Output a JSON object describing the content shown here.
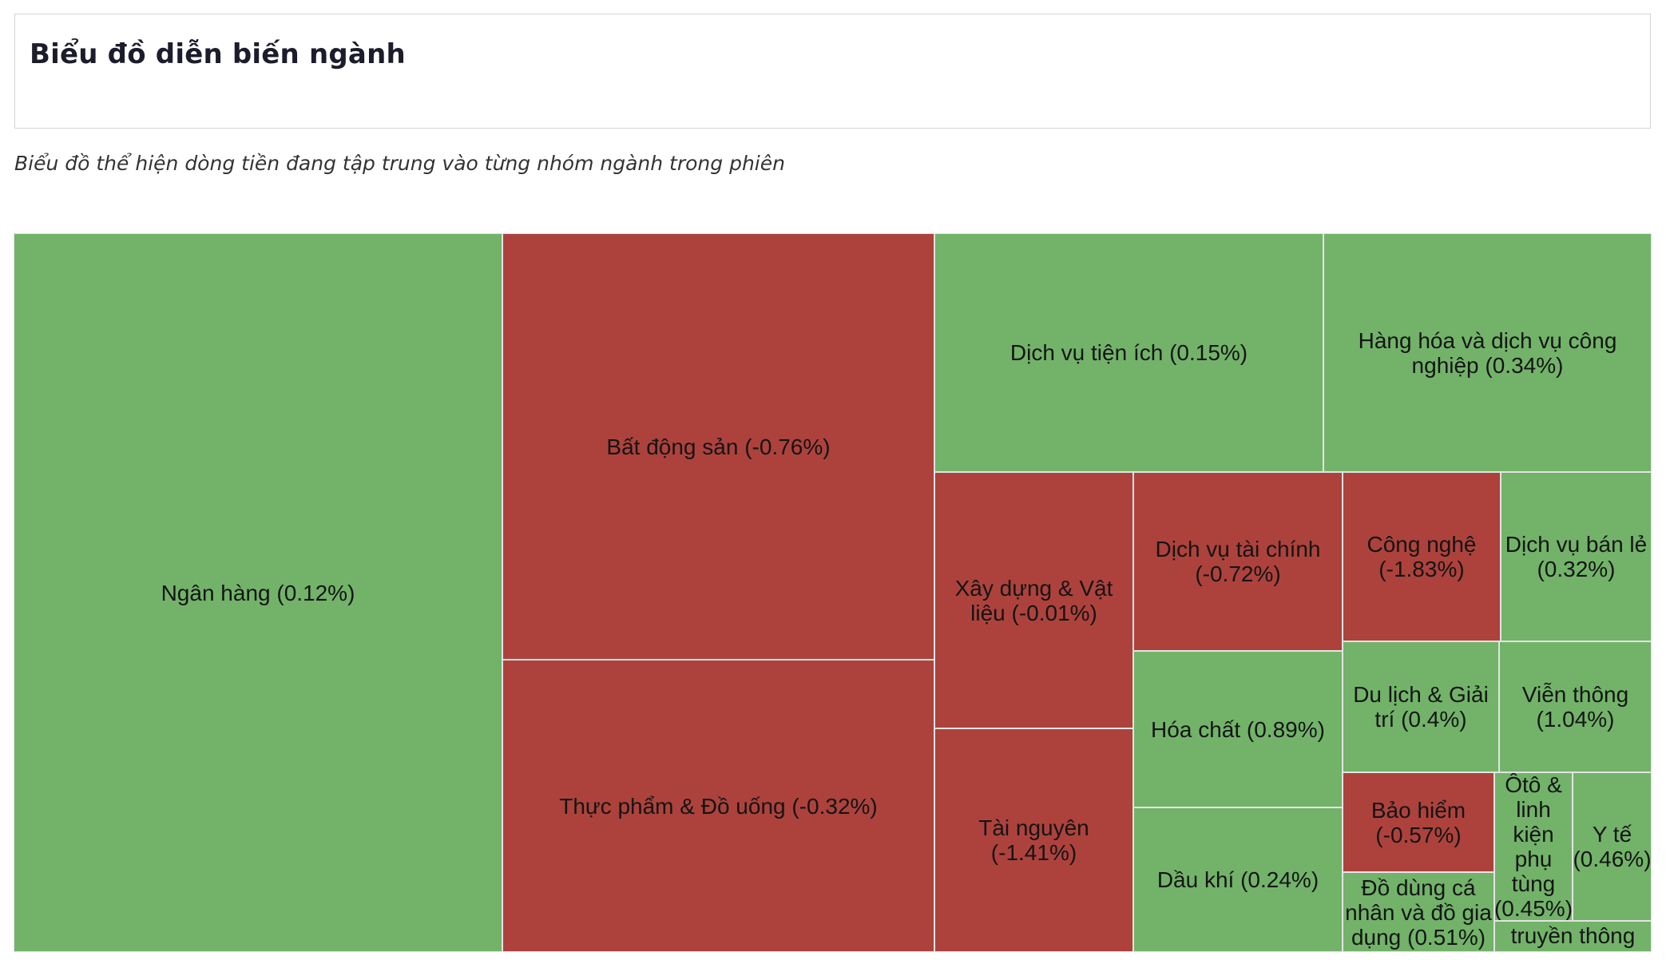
{
  "header": {
    "title": "Biểu đồ diễn biến ngành",
    "subtitle": "Biểu đồ thể hiện dòng tiền đang tập trung vào từng nhóm ngành trong phiên"
  },
  "colors": {
    "positive": "#72b369",
    "negative": "#ad423c",
    "border": "#e3e3e3"
  },
  "chart_data": {
    "type": "treemap",
    "title": "",
    "legend": "none",
    "items": [
      {
        "name": "Ngân hàng",
        "change": 0.12,
        "label": "Ngân hàng (0.12%)"
      },
      {
        "name": "Bất động sản",
        "change": -0.76,
        "label": "Bất động sản (-0.76%)"
      },
      {
        "name": "Thực phẩm & Đồ uống",
        "change": -0.32,
        "label": "Thực phẩm & Đồ uống (-0.32%)"
      },
      {
        "name": "Dịch vụ tiện ích",
        "change": 0.15,
        "label": "Dịch vụ tiện ích (0.15%)"
      },
      {
        "name": "Hàng hóa và dịch vụ công nghiệp",
        "change": 0.34,
        "label": "Hàng hóa và dịch vụ công\nnghiệp (0.34%)"
      },
      {
        "name": "Xây dựng & Vật liệu",
        "change": -0.01,
        "label": "Xây dựng & Vật\nliệu (-0.01%)"
      },
      {
        "name": "Dịch vụ tài chính",
        "change": -0.72,
        "label": "Dịch vụ tài chính\n(-0.72%)"
      },
      {
        "name": "Công nghệ",
        "change": -1.83,
        "label": "Công nghệ\n(-1.83%)"
      },
      {
        "name": "Dịch vụ bán lẻ",
        "change": 0.32,
        "label": "Dịch vụ bán lẻ\n(0.32%)"
      },
      {
        "name": "Tài nguyên",
        "change": -1.41,
        "label": "Tài nguyên\n(-1.41%)"
      },
      {
        "name": "Hóa chất",
        "change": 0.89,
        "label": "Hóa chất (0.89%)"
      },
      {
        "name": "Dầu khí",
        "change": 0.24,
        "label": "Dầu khí (0.24%)"
      },
      {
        "name": "Du lịch & Giải trí",
        "change": 0.4,
        "label": "Du lịch & Giải\ntrí (0.4%)"
      },
      {
        "name": "Viễn thông",
        "change": 1.04,
        "label": "Viễn thông\n(1.04%)"
      },
      {
        "name": "Bảo hiểm",
        "change": -0.57,
        "label": "Bảo hiểm\n(-0.57%)"
      },
      {
        "name": "Ôtô & linh kiện phụ tùng",
        "change": 0.45,
        "label": "Ôtô &\nlinh\nkiện\nphụ\ntùng\n(0.45%)"
      },
      {
        "name": "Y tế",
        "change": 0.46,
        "label": "Y tế\n(0.46%)"
      },
      {
        "name": "Đồ dùng cá nhân và đồ gia dụng",
        "change": 0.51,
        "label": "Đồ dùng cá\nnhân và đồ gia\ndụng (0.51%)"
      },
      {
        "name": "Truyền thông",
        "change": null,
        "label": "truyền thông"
      }
    ]
  }
}
